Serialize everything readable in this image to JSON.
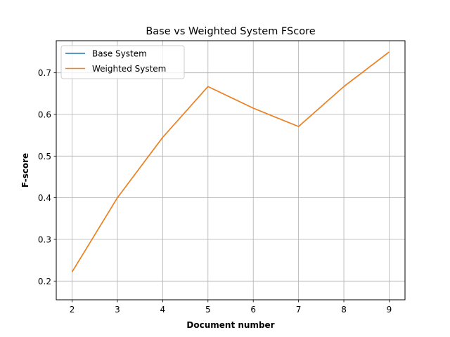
{
  "chart_data": {
    "type": "line",
    "title": "Base vs Weighted System FScore",
    "xlabel": "Document number",
    "ylabel": "F-score",
    "x": [
      2,
      3,
      4,
      5,
      6,
      7,
      8,
      9
    ],
    "xlim": [
      1.65,
      9.35
    ],
    "ylim": [
      0.155,
      0.777
    ],
    "xticks": [
      2,
      3,
      4,
      5,
      6,
      7,
      8,
      9
    ],
    "yticks": [
      0.2,
      0.3,
      0.4,
      0.5,
      0.6,
      0.7
    ],
    "grid": true,
    "legend_position": "top-left",
    "series": [
      {
        "name": "Base System",
        "color": "#1f77b4",
        "values": [
          0.222,
          0.4,
          0.545,
          0.667,
          0.615,
          0.571,
          0.667,
          0.75
        ]
      },
      {
        "name": "Weighted System",
        "color": "#ff7f0e",
        "values": [
          0.222,
          0.4,
          0.545,
          0.667,
          0.615,
          0.571,
          0.667,
          0.75
        ]
      }
    ]
  }
}
